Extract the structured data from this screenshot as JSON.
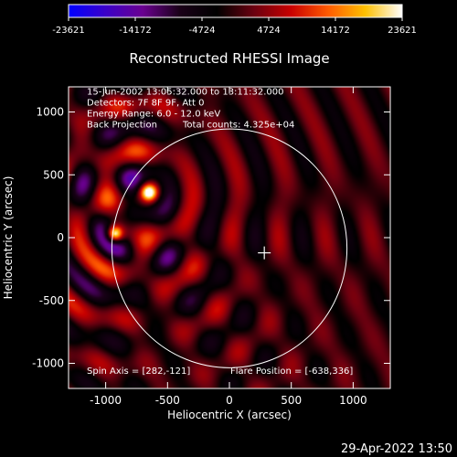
{
  "chart_data": {
    "type": "heatmap",
    "title": "Reconstructed RHESSI Image",
    "xlabel": "Heliocentric X (arcsec)",
    "ylabel": "Heliocentric Y (arcsec)",
    "xlim": [
      -1300,
      1300
    ],
    "ylim": [
      -1200,
      1200
    ],
    "x_ticks": [
      -1000,
      -500,
      0,
      500,
      1000
    ],
    "y_ticks": [
      -1000,
      -500,
      0,
      500,
      1000
    ],
    "x_tick_labels": [
      "-1000",
      "-500",
      "0",
      "500",
      "1000"
    ],
    "y_tick_labels": [
      "-1000",
      "-500",
      "0",
      "500",
      "1000"
    ],
    "colorbar": {
      "min": -23621,
      "max": 23621,
      "tick_labels": [
        "-23621",
        "-14172",
        "-4724",
        "4724",
        "14172",
        "23621"
      ],
      "tick_values": [
        -23621,
        -14172,
        -4724,
        4724,
        14172,
        23621
      ],
      "colors": [
        "#0000ff",
        "#3b00c8",
        "#6a0090",
        "#1a0018",
        "#000000",
        "#6a0010",
        "#c80000",
        "#ff5a00",
        "#ffc000",
        "#ffffff"
      ]
    },
    "annotations": [
      "15-Jun-2002 13:05:32.000 to 13:11:32.000",
      "Detectors: 7F 8F 9F, Att 0",
      "Energy Range: 6.0 - 12.0 keV",
      "Back Projection",
      "Total counts: 4.325e+04"
    ],
    "footer_left": "Spin Axis = [282,-121]",
    "footer_right": "Flare Position = [-638,336]",
    "spin_axis": [
      282,
      -121
    ],
    "flare_position": [
      -638,
      336
    ],
    "solar_disk": {
      "center": [
        0,
        -85
      ],
      "radius_x": 950,
      "radius_y": 950
    },
    "bright_sources": [
      {
        "x": -650,
        "y": 360,
        "peak": 23621
      },
      {
        "x": -925,
        "y": 30,
        "peak": 20000
      }
    ]
  },
  "timestamp": "29-Apr-2022 13:50"
}
